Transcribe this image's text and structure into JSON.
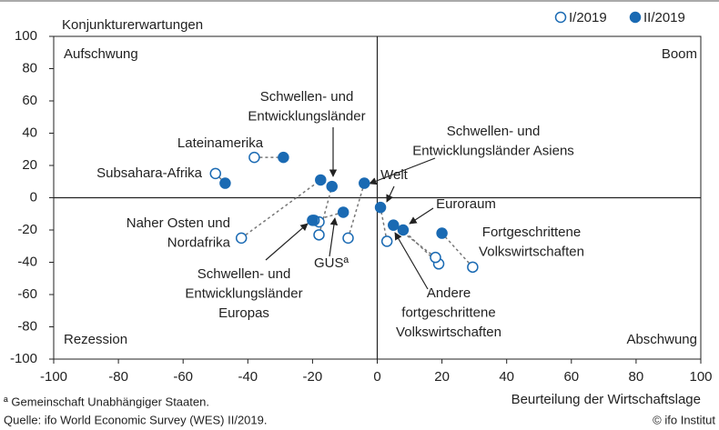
{
  "chart_data": {
    "type": "scatter",
    "y_axis_label": "Konjunkturerwartungen",
    "x_axis_label": "Beurteilung der Wirtschaftslage",
    "quadrants": [
      "Aufschwung",
      "Boom",
      "Rezession",
      "Abschwung"
    ],
    "labels": [
      [
        "Lateinamerika"
      ],
      [
        "Subsahara-Afrika"
      ],
      [
        "Naher Osten und",
        "Nordafrika"
      ],
      [
        "Schwellen- und",
        "Entwicklungsländer"
      ],
      [
        "Schwellen- und",
        "Entwicklungsländer Asiens"
      ],
      [
        "Schwellen- und",
        "Entwicklungsländer",
        "Europas"
      ],
      [
        "GUSª"
      ],
      [
        "Welt"
      ],
      [
        "Euroraum"
      ],
      [
        "Andere",
        "fortgeschrittene",
        "Volkswirtschaften"
      ],
      [
        "Fortgeschrittene",
        "Volkswirtschaften"
      ]
    ],
    "series": [
      {
        "name": "I/2019",
        "color": "#1a6ab3",
        "filled": false,
        "x": [
          -38,
          -50,
          -42,
          -18,
          -9,
          -18,
          -19.5,
          3,
          19,
          18,
          29.5
        ],
        "values": [
          25,
          15,
          -25,
          -23,
          -25,
          -15,
          -14,
          -27,
          -41,
          -37,
          -43
        ]
      },
      {
        "name": "II/2019",
        "color": "#1a6ab3",
        "filled": true,
        "x": [
          -29,
          -47,
          -17.5,
          -14,
          -4,
          -20,
          -10.5,
          1,
          8,
          5,
          20
        ],
        "values": [
          25,
          9,
          11,
          7,
          9,
          -14,
          -9,
          -6,
          -20,
          -17,
          -22
        ]
      }
    ],
    "xlim": [
      -100,
      100
    ],
    "xticks": [
      -100,
      -80,
      -60,
      -40,
      -20,
      0,
      20,
      40,
      60,
      80,
      100
    ],
    "ylim": [
      -100,
      100
    ],
    "yticks": [
      -100,
      -80,
      -60,
      -40,
      -20,
      0,
      20,
      40,
      60,
      80,
      100
    ],
    "footnote": "ª Gemeinschaft Unabhängiger Staaten.",
    "source": "Quelle: ifo World Economic Survey (WES) II/2019.",
    "copyright": "© ifo Institut"
  }
}
